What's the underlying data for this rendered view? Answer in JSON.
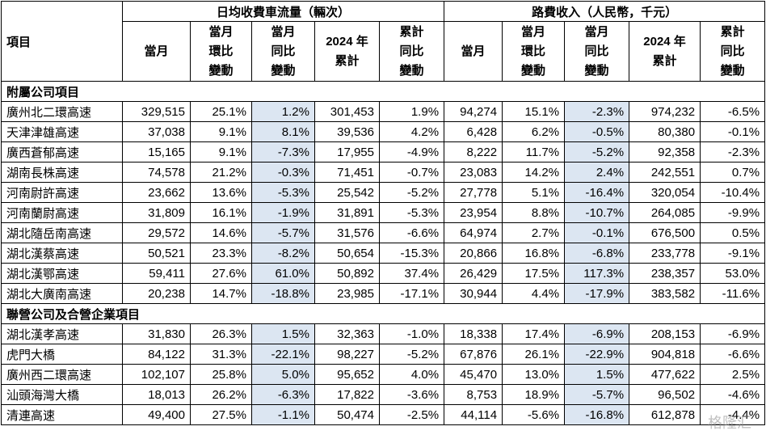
{
  "header": {
    "item_label": "項目",
    "group1_label": "日均收費車流量（輛次）",
    "group2_label": "路費收入（人民幣，千元）",
    "columns": [
      [
        "當月"
      ],
      [
        "當月",
        "環比",
        "變動"
      ],
      [
        "當月",
        "同比",
        "變動"
      ],
      [
        "2024 年",
        "累計"
      ],
      [
        "累計",
        "同比",
        "變動"
      ],
      [
        "當月"
      ],
      [
        "當月",
        "環比",
        "變動"
      ],
      [
        "當月",
        "同比",
        "變動"
      ],
      [
        "2024 年",
        "累計"
      ],
      [
        "累計",
        "同比",
        "變動"
      ]
    ]
  },
  "sections": [
    {
      "title": "附屬公司項目",
      "rows": [
        [
          "廣州北二環高速",
          "329,515",
          "25.1%",
          "1.2%",
          "301,453",
          "1.9%",
          "94,274",
          "15.1%",
          "-2.3%",
          "974,232",
          "-6.5%"
        ],
        [
          "天津津雄高速",
          "37,038",
          "9.1%",
          "8.1%",
          "39,536",
          "4.2%",
          "6,428",
          "6.2%",
          "-0.5%",
          "80,380",
          "-0.1%"
        ],
        [
          "廣西蒼郁高速",
          "15,165",
          "9.1%",
          "-7.3%",
          "17,955",
          "-4.9%",
          "8,222",
          "11.7%",
          "-5.2%",
          "92,358",
          "-2.3%"
        ],
        [
          "湖南長株高速",
          "74,578",
          "21.2%",
          "-0.3%",
          "71,451",
          "-0.7%",
          "23,083",
          "14.2%",
          "2.4%",
          "242,551",
          "0.7%"
        ],
        [
          "河南尉許高速",
          "23,662",
          "13.6%",
          "-5.3%",
          "25,542",
          "-5.2%",
          "27,778",
          "5.1%",
          "-16.4%",
          "320,054",
          "-10.4%"
        ],
        [
          "河南蘭尉高速",
          "31,809",
          "16.1%",
          "-1.9%",
          "31,891",
          "-5.3%",
          "23,954",
          "8.8%",
          "-10.7%",
          "264,085",
          "-9.9%"
        ],
        [
          "湖北隨岳南高速",
          "29,572",
          "14.6%",
          "-5.7%",
          "31,576",
          "-6.6%",
          "64,974",
          "2.7%",
          "-0.1%",
          "676,500",
          "0.5%"
        ],
        [
          "湖北漢蔡高速",
          "50,521",
          "23.3%",
          "-8.2%",
          "50,654",
          "-15.3%",
          "20,866",
          "16.8%",
          "-6.8%",
          "233,778",
          "-9.1%"
        ],
        [
          "湖北漢鄂高速",
          "59,411",
          "27.6%",
          "61.0%",
          "50,892",
          "37.4%",
          "26,429",
          "17.5%",
          "117.3%",
          "238,357",
          "53.0%"
        ],
        [
          "湖北大廣南高速",
          "20,238",
          "14.7%",
          "-18.8%",
          "23,985",
          "-17.1%",
          "30,944",
          "4.4%",
          "-17.9%",
          "383,582",
          "-11.6%"
        ]
      ]
    },
    {
      "title": "聯營公司及合營企業項目",
      "rows": [
        [
          "湖北漢孝高速",
          "31,830",
          "26.3%",
          "1.5%",
          "32,363",
          "-1.0%",
          "18,338",
          "17.4%",
          "-6.9%",
          "208,153",
          "-6.9%"
        ],
        [
          "虎門大橋",
          "84,122",
          "31.3%",
          "-22.1%",
          "98,227",
          "-5.2%",
          "67,876",
          "26.1%",
          "-22.9%",
          "904,818",
          "-6.6%"
        ],
        [
          "廣州西二環高速",
          "102,107",
          "25.8%",
          "5.0%",
          "95,652",
          "4.0%",
          "45,470",
          "13.0%",
          "1.5%",
          "477,622",
          "2.5%"
        ],
        [
          "汕頭海灣大橋",
          "18,013",
          "26.2%",
          "-6.3%",
          "17,822",
          "-3.6%",
          "8,753",
          "18.9%",
          "-5.7%",
          "96,502",
          "-4.6%"
        ],
        [
          "清連高速",
          "49,400",
          "27.5%",
          "-1.1%",
          "50,474",
          "-2.5%",
          "44,114",
          "-5.6%",
          "-16.8%",
          "612,878",
          "-4.4%"
        ]
      ]
    }
  ],
  "highlight_color": "#dce6f2",
  "watermark": "格隆汇"
}
